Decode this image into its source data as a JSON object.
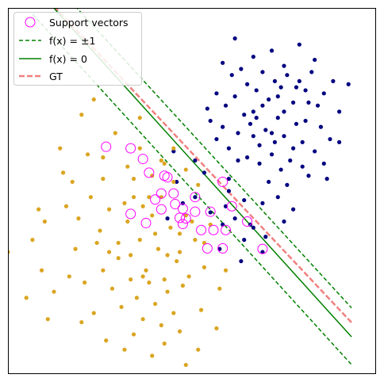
{
  "chart_data": {
    "type": "scatter",
    "title": "",
    "xlabel": "",
    "ylabel": "",
    "xlim": [
      -6.0,
      6.0
    ],
    "ylim": [
      -6.0,
      6.0
    ],
    "ticks": "none",
    "grid": false,
    "legend": {
      "placement": "top-left",
      "entries": [
        {
          "key": "support",
          "label": "Support vectors",
          "color": "#ff00ff"
        },
        {
          "key": "margin",
          "label": "f(x) = ±1",
          "color": "#008000"
        },
        {
          "key": "boundary",
          "label": "f(x) = 0",
          "color": "#008000"
        },
        {
          "key": "gt",
          "label": "GT",
          "color": "#f08080"
        }
      ]
    },
    "colors": {
      "class_pos": "#000080",
      "class_neg": "#daa520",
      "support": "#ff00ff",
      "decision": "#008000",
      "gt": "#f08080"
    },
    "lines": {
      "decision": {
        "x": [
          -5.2,
          5.2
        ],
        "y": [
          6.77,
          -4.78
        ],
        "style": "solid"
      },
      "margin_upper": {
        "x": [
          -5.2,
          5.2
        ],
        "y": [
          7.59,
          -3.83
        ],
        "style": "dashed"
      },
      "margin_lower": {
        "x": [
          -5.2,
          5.2
        ],
        "y": [
          5.8,
          -5.69
        ],
        "style": "dashed"
      },
      "gt": {
        "x": [
          -5.2,
          5.2
        ],
        "y": [
          6.8,
          -4.31
        ],
        "style": "dashed"
      }
    },
    "series": [
      {
        "key": "class_pos",
        "points": [
          [
            1.4,
            5.0
          ],
          [
            -0.6,
            1.3
          ],
          [
            0.1,
            1.0
          ],
          [
            0.4,
            0.6
          ],
          [
            0.6,
            2.3
          ],
          [
            0.8,
            1.7
          ],
          [
            1.0,
            2.1
          ],
          [
            1.2,
            1.4
          ],
          [
            1.5,
            1.9
          ],
          [
            1.8,
            1.1
          ],
          [
            2.0,
            2.6
          ],
          [
            2.2,
            1.5
          ],
          [
            2.4,
            2.0
          ],
          [
            2.6,
            1.2
          ],
          [
            2.8,
            2.4
          ],
          [
            3.0,
            1.8
          ],
          [
            3.2,
            1.0
          ],
          [
            3.4,
            2.2
          ],
          [
            3.6,
            1.6
          ],
          [
            3.8,
            2.9
          ],
          [
            4.0,
            1.3
          ],
          [
            4.2,
            2.1
          ],
          [
            4.5,
            1.7
          ],
          [
            4.8,
            2.6
          ],
          [
            1.1,
            2.8
          ],
          [
            1.4,
            3.1
          ],
          [
            1.7,
            2.5
          ],
          [
            2.1,
            3.3
          ],
          [
            2.5,
            3.0
          ],
          [
            2.9,
            3.4
          ],
          [
            3.3,
            2.9
          ],
          [
            3.7,
            3.3
          ],
          [
            4.1,
            2.8
          ],
          [
            1.3,
            3.8
          ],
          [
            1.8,
            3.5
          ],
          [
            2.3,
            3.9
          ],
          [
            2.7,
            3.6
          ],
          [
            3.1,
            3.8
          ],
          [
            3.5,
            3.6
          ],
          [
            3.9,
            3.9
          ],
          [
            1.0,
            4.2
          ],
          [
            2.0,
            4.4
          ],
          [
            3.0,
            4.1
          ],
          [
            4.0,
            4.3
          ],
          [
            2.6,
            4.6
          ],
          [
            1.6,
            4.0
          ],
          [
            0.8,
            3.2
          ],
          [
            3.5,
            4.8
          ],
          [
            2.2,
            0.9
          ],
          [
            2.9,
            0.7
          ],
          [
            3.6,
            0.8
          ],
          [
            4.3,
            0.9
          ],
          [
            1.5,
            1.0
          ],
          [
            2.0,
            1.8
          ],
          [
            2.7,
            1.6
          ],
          [
            3.3,
            1.4
          ],
          [
            1.2,
            0.4
          ],
          [
            2.5,
            0.3
          ],
          [
            3.1,
            0.2
          ],
          [
            3.8,
            0.5
          ],
          [
            4.4,
            0.4
          ],
          [
            2.8,
            -0.2
          ],
          [
            2.3,
            -0.4
          ],
          [
            3.3,
            -0.6
          ],
          [
            3.0,
            -1.0
          ],
          [
            2.4,
            -1.5
          ],
          [
            1.9,
            -1.1
          ],
          [
            4.8,
            1.6
          ],
          [
            4.3,
            3.2
          ],
          [
            5.1,
            3.5
          ],
          [
            0.5,
            2.7
          ],
          [
            1.9,
            2.2
          ],
          [
            2.3,
            2.8
          ],
          [
            3.4,
            3.4
          ],
          [
            3.0,
            2.6
          ],
          [
            2.6,
            1.9
          ],
          [
            4.6,
            3.6
          ],
          [
            2.1,
            2.4
          ],
          [
            2.8,
            3.1
          ],
          [
            3.7,
            2.3
          ],
          [
            1.2,
            0.0
          ],
          [
            1.7,
            -0.3
          ],
          [
            1.4,
            -0.9
          ],
          [
            1.0,
            -1.1
          ],
          [
            -0.8,
            -0.9
          ],
          [
            -0.3,
            -0.4
          ],
          [
            -0.5,
            0.3
          ],
          [
            0.1,
            -0.2
          ],
          [
            0.6,
            -0.7
          ],
          [
            1.7,
            -1.6
          ],
          [
            2.3,
            -2.0
          ],
          [
            0.9,
            -1.9
          ],
          [
            1.6,
            -2.3
          ],
          [
            2.0,
            -1.2
          ],
          [
            1.1,
            -0.5
          ]
        ]
      },
      {
        "key": "class_neg",
        "points": [
          [
            -6.0,
            -2.0
          ],
          [
            -4.8,
            -1.0
          ],
          [
            -4.2,
            0.6
          ],
          [
            -3.3,
            -0.2
          ],
          [
            -3.0,
            -1.3
          ],
          [
            -2.7,
            -0.6
          ],
          [
            -2.4,
            -2.2
          ],
          [
            -2.1,
            -1.0
          ],
          [
            -1.9,
            -0.2
          ],
          [
            -1.7,
            -1.6
          ],
          [
            -1.5,
            -2.6
          ],
          [
            -1.3,
            -0.8
          ],
          [
            -1.1,
            -1.9
          ],
          [
            -0.9,
            -2.9
          ],
          [
            -0.7,
            -1.2
          ],
          [
            -0.5,
            -2.3
          ],
          [
            -0.3,
            -3.1
          ],
          [
            -2.9,
            -2.6
          ],
          [
            -2.6,
            -3.2
          ],
          [
            -2.3,
            -3.8
          ],
          [
            -2.0,
            -2.9
          ],
          [
            -1.8,
            -3.5
          ],
          [
            -1.6,
            -4.2
          ],
          [
            -1.4,
            -3.0
          ],
          [
            -1.2,
            -3.7
          ],
          [
            -1.0,
            -4.4
          ],
          [
            -0.8,
            -3.3
          ],
          [
            -0.6,
            -4.0
          ],
          [
            -0.4,
            -4.6
          ],
          [
            -3.5,
            -3.0
          ],
          [
            -3.8,
            -1.9
          ],
          [
            -4.0,
            -2.8
          ],
          [
            -3.2,
            -4.0
          ],
          [
            -3.6,
            -4.3
          ],
          [
            -2.8,
            -4.9
          ],
          [
            -2.2,
            -5.2
          ],
          [
            -1.9,
            -4.7
          ],
          [
            -1.3,
            -5.4
          ],
          [
            -0.9,
            -5.0
          ],
          [
            -0.2,
            -5.7
          ],
          [
            -4.5,
            -3.3
          ],
          [
            -4.7,
            -4.2
          ],
          [
            -5.2,
            -1.6
          ],
          [
            -5.0,
            -0.6
          ],
          [
            -4.3,
            1.4
          ],
          [
            -3.9,
            0.3
          ],
          [
            -3.4,
            1.2
          ],
          [
            -2.9,
            0.4
          ],
          [
            -2.5,
            1.9
          ],
          [
            -2.1,
            0.8
          ],
          [
            -1.7,
            1.4
          ],
          [
            -1.3,
            0.5
          ],
          [
            -0.9,
            0.9
          ],
          [
            -0.6,
            0.3
          ],
          [
            -2.2,
            -0.4
          ],
          [
            -1.6,
            -0.5
          ],
          [
            -0.4,
            -1.4
          ],
          [
            0.1,
            -1.6
          ],
          [
            0.4,
            -2.5
          ],
          [
            0.9,
            -3.2
          ],
          [
            1.1,
            -2.6
          ],
          [
            0.6,
            -1.1
          ],
          [
            -0.1,
            -2.8
          ],
          [
            0.3,
            -3.9
          ],
          [
            -2.4,
            -1.7
          ],
          [
            -2.0,
            -2.1
          ],
          [
            -1.6,
            -2.8
          ],
          [
            -1.2,
            -1.4
          ],
          [
            -0.8,
            -2.1
          ],
          [
            -3.1,
            -1.7
          ],
          [
            -2.7,
            -2.0
          ],
          [
            -4.1,
            -0.5
          ],
          [
            -3.7,
            -0.9
          ],
          [
            -2.9,
            1.1
          ],
          [
            -1.9,
            0.4
          ],
          [
            -1.4,
            -0.2
          ],
          [
            -5.4,
            -3.5
          ],
          [
            -4.9,
            -2.6
          ],
          [
            0.8,
            -4.5
          ],
          [
            0.2,
            -5.2
          ],
          [
            -0.4,
            -2.0
          ],
          [
            -0.2,
            -0.8
          ],
          [
            0.4,
            -1.7
          ],
          [
            0.0,
            -1.0
          ],
          [
            -1.0,
            -0.2
          ],
          [
            -1.7,
            2.4
          ],
          [
            -3.2,
            3.0
          ],
          [
            -3.6,
            2.5
          ],
          [
            -0.6,
            1.4
          ],
          [
            -0.2,
            0.7
          ],
          [
            0.2,
            0.2
          ],
          [
            -1.0,
            1.0
          ]
        ]
      }
    ],
    "support_vectors": [
      [
        -2.8,
        1.45
      ],
      [
        -1.6,
        1.05
      ],
      [
        -1.4,
        0.6
      ],
      [
        -0.8,
        0.45
      ],
      [
        -1.0,
        -0.08
      ],
      [
        -0.6,
        -0.08
      ],
      [
        -1.2,
        -0.28
      ],
      [
        -0.55,
        -0.43
      ],
      [
        -0.3,
        -0.58
      ],
      [
        -0.4,
        -0.88
      ],
      [
        0.1,
        -0.68
      ],
      [
        -0.3,
        -1.08
      ],
      [
        0.3,
        -1.28
      ],
      [
        0.6,
        -0.68
      ],
      [
        0.5,
        -1.88
      ],
      [
        1.0,
        0.3
      ],
      [
        1.3,
        -0.5
      ],
      [
        1.1,
        -1.28
      ],
      [
        -2.0,
        -0.75
      ],
      [
        -1.0,
        -0.6
      ],
      [
        0.1,
        -0.2
      ],
      [
        0.7,
        -1.28
      ],
      [
        1.0,
        -1.88
      ],
      [
        -1.5,
        -1.05
      ],
      [
        -0.2,
        -0.9
      ],
      [
        1.8,
        -1.0
      ],
      [
        -0.9,
        0.5
      ],
      [
        -2.0,
        1.4
      ],
      [
        2.3,
        -1.9
      ]
    ]
  }
}
